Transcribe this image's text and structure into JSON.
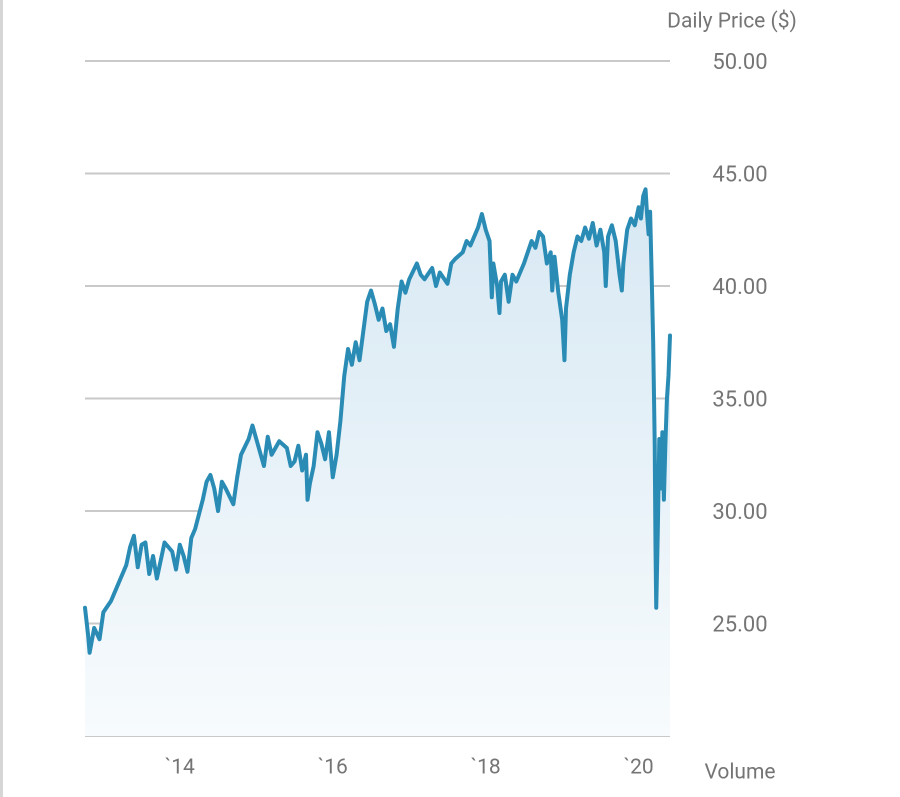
{
  "chart_data": {
    "type": "line",
    "y_axis_title": "Daily Price ($)",
    "secondary_label": "Volume",
    "color": "#2a8cb5",
    "grid": true,
    "xlim": [
      2012.76,
      2020.41
    ],
    "ylim": [
      20,
      50
    ],
    "xticks": [
      {
        "value": 2014,
        "label": "`14"
      },
      {
        "value": 2016,
        "label": "`16"
      },
      {
        "value": 2018,
        "label": "`18"
      },
      {
        "value": 2020,
        "label": "`20"
      }
    ],
    "yticks": [
      {
        "value": 25,
        "label": "25.00"
      },
      {
        "value": 30,
        "label": "30.00"
      },
      {
        "value": 35,
        "label": "35.00"
      },
      {
        "value": 40,
        "label": "40.00"
      },
      {
        "value": 45,
        "label": "45.00"
      },
      {
        "value": 50,
        "label": "50.00"
      }
    ],
    "x": [
      2012.76,
      2012.8,
      2012.82,
      2012.88,
      2012.95,
      2013.0,
      2013.1,
      2013.2,
      2013.3,
      2013.35,
      2013.4,
      2013.45,
      2013.5,
      2013.55,
      2013.6,
      2013.65,
      2013.7,
      2013.8,
      2013.9,
      2013.95,
      2014.0,
      2014.05,
      2014.1,
      2014.15,
      2014.2,
      2014.3,
      2014.35,
      2014.4,
      2014.45,
      2014.5,
      2014.55,
      2014.6,
      2014.7,
      2014.75,
      2014.8,
      2014.9,
      2014.95,
      2015.0,
      2015.1,
      2015.15,
      2015.2,
      2015.3,
      2015.4,
      2015.45,
      2015.5,
      2015.55,
      2015.6,
      2015.65,
      2015.67,
      2015.7,
      2015.75,
      2015.8,
      2015.85,
      2015.9,
      2015.95,
      2016.0,
      2016.05,
      2016.1,
      2016.15,
      2016.2,
      2016.25,
      2016.3,
      2016.35,
      2016.4,
      2016.45,
      2016.5,
      2016.55,
      2016.6,
      2016.65,
      2016.7,
      2016.75,
      2016.8,
      2016.85,
      2016.9,
      2016.95,
      2017.0,
      2017.1,
      2017.15,
      2017.2,
      2017.3,
      2017.35,
      2017.4,
      2017.5,
      2017.55,
      2017.6,
      2017.7,
      2017.75,
      2017.8,
      2017.9,
      2017.95,
      2018.0,
      2018.05,
      2018.08,
      2018.1,
      2018.15,
      2018.18,
      2018.2,
      2018.25,
      2018.3,
      2018.35,
      2018.4,
      2018.5,
      2018.55,
      2018.6,
      2018.65,
      2018.7,
      2018.75,
      2018.8,
      2018.85,
      2018.87,
      2018.9,
      2018.95,
      2019.0,
      2019.03,
      2019.05,
      2019.1,
      2019.15,
      2019.2,
      2019.25,
      2019.3,
      2019.35,
      2019.4,
      2019.45,
      2019.5,
      2019.55,
      2019.57,
      2019.6,
      2019.65,
      2019.7,
      2019.75,
      2019.78,
      2019.8,
      2019.85,
      2019.9,
      2019.95,
      2020.0,
      2020.03,
      2020.06,
      2020.09,
      2020.11,
      2020.13,
      2020.15,
      2020.17,
      2020.19,
      2020.21,
      2020.22,
      2020.23,
      2020.25,
      2020.27,
      2020.29,
      2020.31,
      2020.33,
      2020.35,
      2020.37,
      2020.39,
      2020.41
    ],
    "values": [
      25.7,
      24.5,
      23.7,
      24.8,
      24.3,
      25.5,
      26.0,
      26.8,
      27.6,
      28.4,
      28.9,
      27.5,
      28.5,
      28.6,
      27.2,
      28.0,
      27.0,
      28.6,
      28.2,
      27.4,
      28.5,
      28.0,
      27.3,
      28.8,
      29.2,
      30.5,
      31.3,
      31.6,
      31.0,
      30.0,
      31.3,
      31.0,
      30.3,
      31.5,
      32.5,
      33.2,
      33.8,
      33.2,
      32.0,
      33.3,
      32.5,
      33.1,
      32.8,
      32.0,
      32.2,
      32.9,
      31.8,
      32.5,
      30.5,
      31.2,
      32.0,
      33.5,
      33.0,
      32.3,
      33.5,
      31.5,
      32.5,
      34.0,
      36.0,
      37.2,
      36.5,
      37.5,
      36.7,
      38.0,
      39.3,
      39.8,
      39.2,
      38.5,
      39.0,
      38.0,
      38.3,
      37.3,
      39.0,
      40.2,
      39.7,
      40.3,
      41.0,
      40.5,
      40.3,
      40.8,
      40.0,
      40.6,
      40.1,
      41.0,
      41.2,
      41.5,
      42.0,
      41.8,
      42.6,
      43.2,
      42.5,
      42.0,
      39.5,
      41.0,
      40.0,
      38.8,
      40.2,
      40.5,
      39.3,
      40.5,
      40.2,
      41.0,
      41.5,
      42.0,
      41.7,
      42.4,
      42.2,
      41.0,
      41.5,
      39.8,
      41.3,
      39.7,
      38.5,
      36.7,
      39.0,
      40.5,
      41.5,
      42.2,
      42.0,
      42.6,
      42.1,
      42.8,
      41.8,
      42.5,
      41.5,
      40.0,
      42.2,
      42.7,
      42.0,
      40.5,
      39.8,
      41.0,
      42.5,
      43.0,
      42.7,
      43.5,
      43.0,
      44.0,
      44.3,
      43.2,
      42.3,
      43.3,
      40.5,
      37.5,
      33.0,
      28.5,
      25.7,
      29.0,
      33.2,
      31.0,
      33.5,
      30.5,
      33.0,
      35.0,
      36.0,
      37.8
    ]
  }
}
